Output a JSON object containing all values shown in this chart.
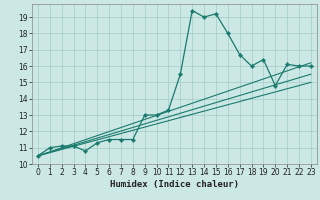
{
  "title": "",
  "xlabel": "Humidex (Indice chaleur)",
  "bg_color": "#cce8e4",
  "grid_color": "#aacfcc",
  "line_color": "#1a7a6e",
  "spine_color": "#888888",
  "xlim": [
    -0.5,
    23.5
  ],
  "ylim": [
    10.0,
    19.8
  ],
  "xticks": [
    0,
    1,
    2,
    3,
    4,
    5,
    6,
    7,
    8,
    9,
    10,
    11,
    12,
    13,
    14,
    15,
    16,
    17,
    18,
    19,
    20,
    21,
    22,
    23
  ],
  "yticks": [
    10,
    11,
    12,
    13,
    14,
    15,
    16,
    17,
    18,
    19
  ],
  "curve1_x": [
    0,
    1,
    2,
    3,
    4,
    5,
    6,
    7,
    8,
    9,
    10,
    11,
    12,
    13,
    14,
    15,
    16,
    17,
    18,
    19,
    20,
    21,
    22,
    23
  ],
  "curve1_y": [
    10.5,
    11.0,
    11.1,
    11.1,
    10.8,
    11.3,
    11.5,
    11.5,
    11.5,
    13.0,
    13.0,
    13.3,
    15.5,
    19.4,
    19.0,
    19.2,
    18.0,
    16.7,
    16.0,
    16.4,
    14.8,
    16.1,
    16.0,
    16.0
  ],
  "line1_x": [
    0,
    23
  ],
  "line1_y": [
    10.5,
    16.2
  ],
  "line2_x": [
    0,
    23
  ],
  "line2_y": [
    10.5,
    15.5
  ],
  "line3_x": [
    0,
    23
  ],
  "line3_y": [
    10.5,
    15.0
  ],
  "tick_fontsize": 5.5,
  "label_fontsize": 6.5
}
